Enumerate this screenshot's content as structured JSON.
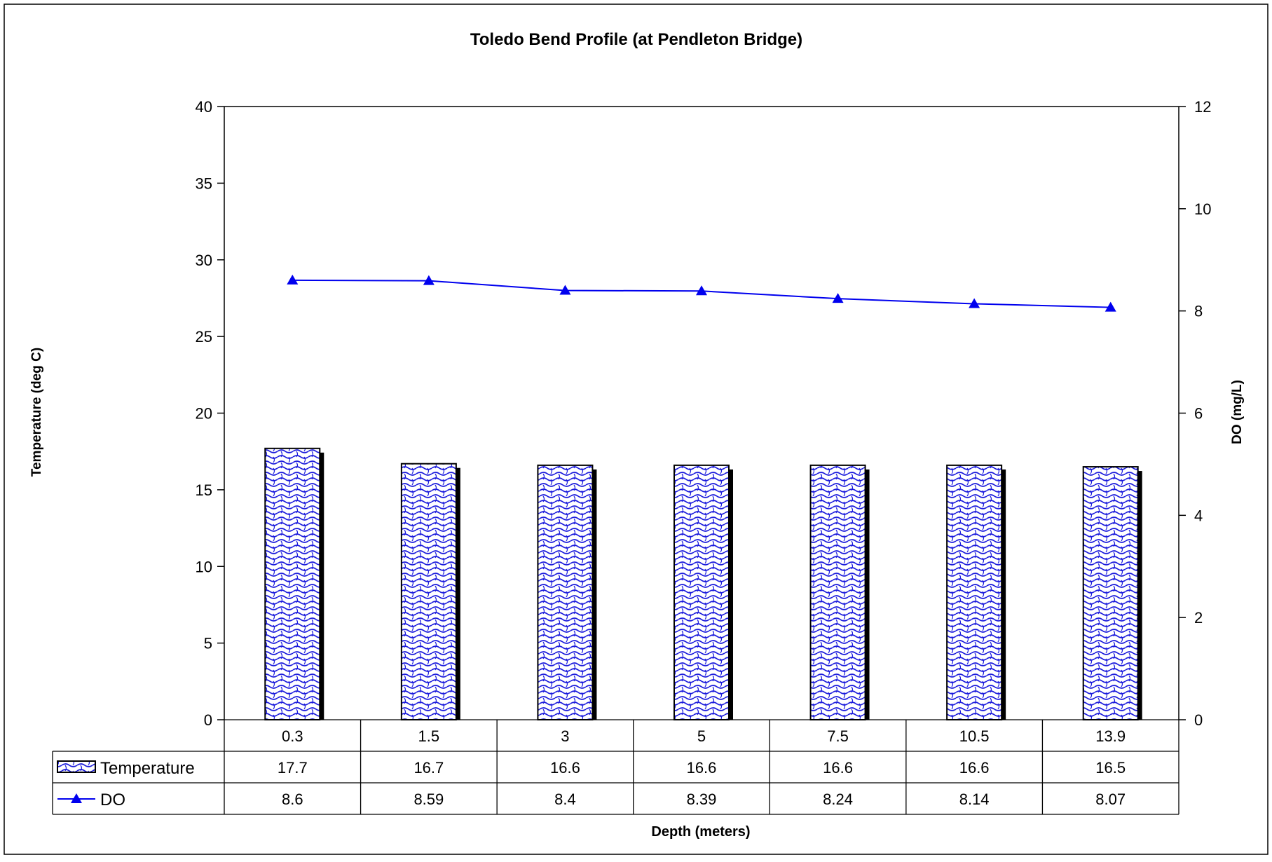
{
  "chart_data": {
    "type": "bar",
    "title": "Toledo Bend Profile (at Pendleton Bridge)",
    "xlabel": "Depth (meters)",
    "ylabel": "Temperature (deg C)",
    "y2label": "DO (mg/L)",
    "categories": [
      "0.3",
      "1.5",
      "3",
      "5",
      "7.5",
      "10.5",
      "13.9"
    ],
    "ylim": [
      0,
      40
    ],
    "yticks": [
      "0",
      "5",
      "10",
      "15",
      "20",
      "25",
      "30",
      "35",
      "40"
    ],
    "y2lim": [
      0,
      12
    ],
    "y2ticks": [
      "0",
      "2",
      "4",
      "6",
      "8",
      "10",
      "12"
    ],
    "grid": false,
    "legend_placement": "data table, left",
    "series": [
      {
        "name": "Temperature",
        "type": "bar",
        "axis": "left",
        "color": "#1a1adc",
        "values": [
          17.7,
          16.7,
          16.6,
          16.6,
          16.6,
          16.6,
          16.5
        ],
        "labels": [
          "17.7",
          "16.7",
          "16.6",
          "16.6",
          "16.6",
          "16.6",
          "16.5"
        ]
      },
      {
        "name": "DO",
        "type": "line",
        "axis": "right",
        "marker": "triangle",
        "color": "#0000ee",
        "values": [
          8.6,
          8.59,
          8.4,
          8.39,
          8.24,
          8.14,
          8.07
        ],
        "labels": [
          "8.6",
          "8.59",
          "8.4",
          "8.39",
          "8.24",
          "8.14",
          "8.07"
        ]
      }
    ]
  }
}
